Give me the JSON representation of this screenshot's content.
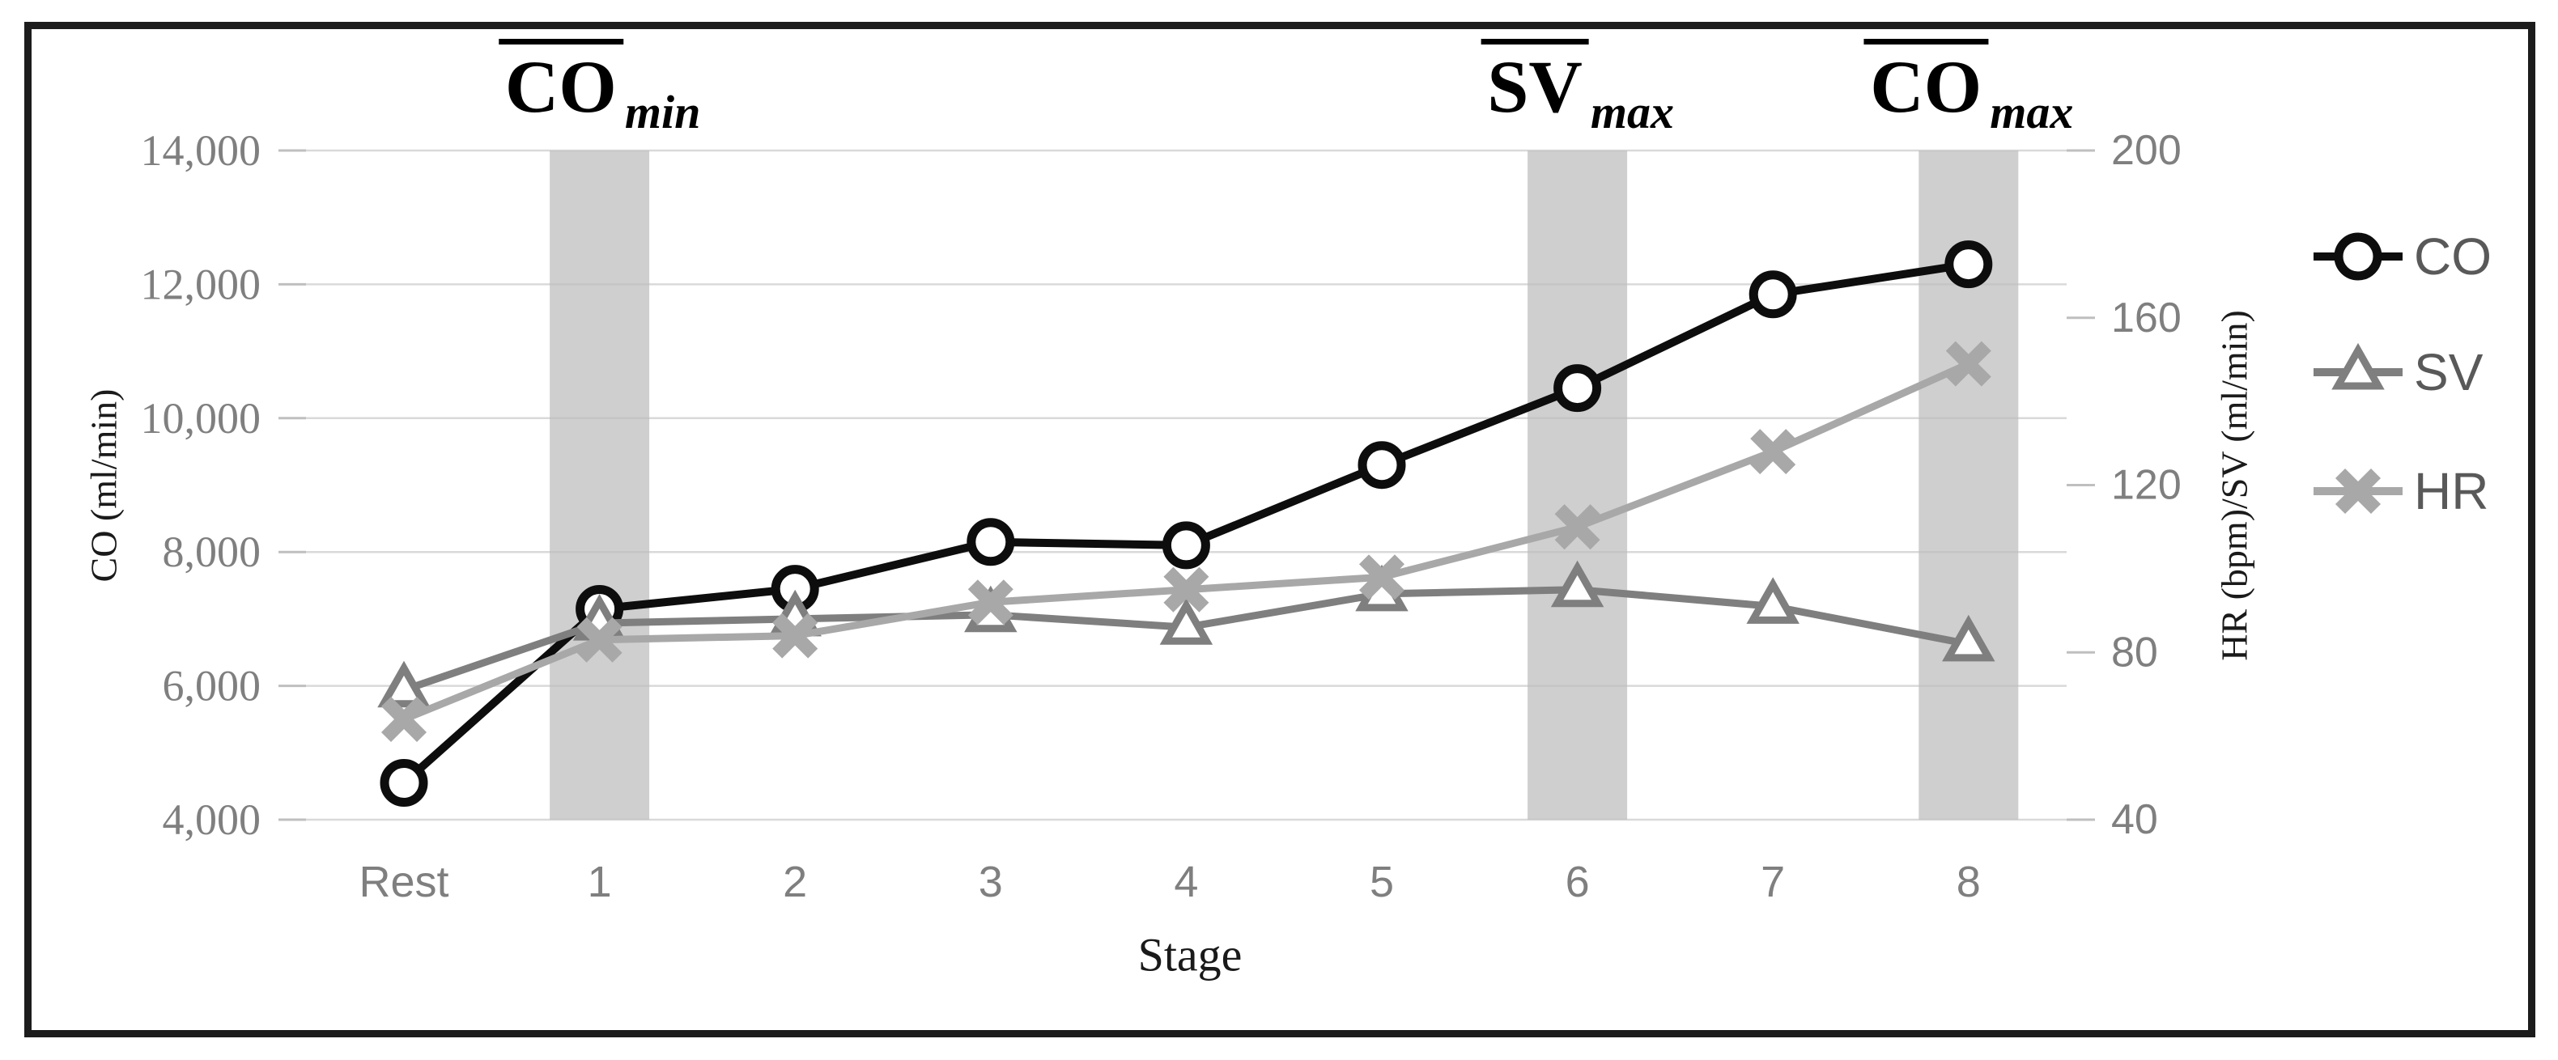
{
  "figure": {
    "background": "#ffffff",
    "border_color": "#1c1c1c",
    "gridline_color": "#d9d9d9",
    "tick_color": "#bfbfbf",
    "tick_label_color": "#7f7f7f",
    "legend_label_color": "#595959",
    "title_color": "#1a1a1a",
    "band_color": "#bdbdbd"
  },
  "chart_data": {
    "type": "line",
    "title": "",
    "categories": [
      "Rest",
      "1",
      "2",
      "3",
      "4",
      "5",
      "6",
      "7",
      "8"
    ],
    "series": [
      {
        "name": "CO",
        "axis": "left",
        "color": "#0d0d0d",
        "marker": "circle",
        "values": [
          4550,
          7150,
          7450,
          8150,
          8100,
          9300,
          10450,
          11850,
          12300
        ]
      },
      {
        "name": "SV",
        "axis": "right",
        "color": "#7f7f7f",
        "marker": "triangle",
        "values": [
          71,
          87,
          88,
          89,
          86,
          94,
          95,
          91,
          82
        ]
      },
      {
        "name": "HR",
        "axis": "right",
        "color": "#a8a8a8",
        "marker": "x",
        "values": [
          64,
          83,
          84,
          92,
          95,
          98,
          110,
          128,
          149
        ]
      }
    ],
    "left_axis": {
      "label": "CO (ml/min)",
      "min": 4000,
      "max": 14000,
      "tick_values": [
        14000,
        12000,
        10000,
        8000,
        6000,
        4000
      ],
      "tick_labels": [
        "14,000",
        "12,000",
        "10,000",
        "8,000",
        "6,000",
        "4,000"
      ]
    },
    "right_axis": {
      "label": "HR (bpm)/SV (ml/min)",
      "min": 40,
      "max": 200,
      "tick_values": [
        200,
        160,
        120,
        80,
        40
      ],
      "tick_labels": [
        "200",
        "160",
        "120",
        "80",
        "40"
      ]
    },
    "x_axis": {
      "label": "Stage"
    },
    "legend": [
      "CO",
      "SV",
      "HR"
    ],
    "legend_position": "right",
    "grid": "horizontal",
    "bands": [
      {
        "category_index": 1,
        "label_base": "CO",
        "label_sub": "min"
      },
      {
        "category_index": 6,
        "label_base": "SV",
        "label_sub": "max"
      },
      {
        "category_index": 8,
        "label_base": "CO",
        "label_sub": "max"
      }
    ]
  }
}
